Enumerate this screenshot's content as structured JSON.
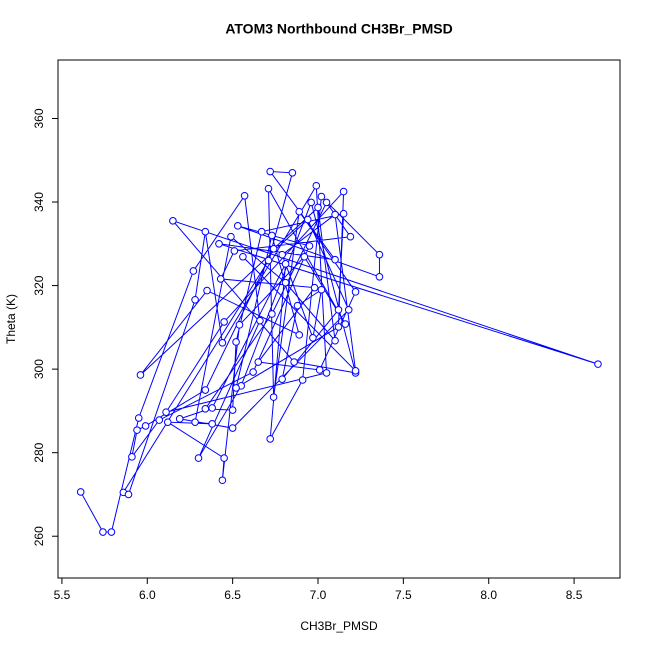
{
  "chart_data": {
    "type": "line",
    "title": "ATOM3 Northbound CH3Br_PMSD",
    "x_label": "CH3Br_PMSD",
    "y_label": "Theta (K)",
    "x": [
      5.61,
      5.74,
      5.79,
      5.95,
      6.27,
      6.57,
      6.66,
      6.3,
      6.55,
      6.96,
      7.22,
      6.86,
      6.15,
      8.64,
      6.42,
      7.1,
      6.72,
      6.85,
      6.71,
      5.86,
      5.89,
      6.28,
      6.34,
      6.44,
      6.99,
      7.05,
      6.11,
      6.45,
      7.15,
      7.12,
      6.52,
      6.73,
      6.89,
      6.35,
      5.96,
      6.94,
      7.18,
      6.5,
      6.19,
      6.38,
      6.81,
      6.72,
      6.91,
      7.02,
      7.36,
      7.36,
      6.53,
      6.95,
      6.62,
      6.07,
      5.91,
      5.94,
      5.99,
      6.34,
      6.74,
      7.0,
      7.1,
      6.81,
      6.49,
      6.28,
      6.38,
      6.12,
      6.45,
      6.44,
      6.54,
      6.92,
      7.16,
      6.71,
      6.74,
      6.89,
      7.22,
      7.01,
      6.65,
      6.98,
      6.43,
      6.51,
      7.19,
      7.05,
      6.73,
      6.34,
      6.5,
      6.52,
      6.67,
      7.15,
      7.12,
      6.79,
      6.88,
      7.02,
      6.97,
      6.79,
      7.1,
      7.22,
      6.56
    ],
    "series": [
      {
        "name": "Theta (K)",
        "color": "#0000ff",
        "values": [
          270.6,
          261,
          261,
          288.3,
          323.5,
          341.5,
          311.6,
          278.7,
          296,
          339.9,
          299.1,
          301.7,
          335.5,
          301.2,
          330,
          326.2,
          347.3,
          347,
          326,
          270.5,
          270,
          316.6,
          332.9,
          306.3,
          343.9,
          299.1,
          289.7,
          311.3,
          342.5,
          310.1,
          295.5,
          332,
          308.2,
          318.8,
          298.6,
          335.8,
          314.2,
          285.9,
          288.1,
          290.7,
          325.2,
          283.3,
          297.4,
          341.3,
          327.4,
          322.1,
          334.3,
          329.5,
          299.3,
          287.8,
          279,
          285.4,
          286.4,
          295,
          328.8,
          338.7,
          306.8,
          320.7,
          331.7,
          287.3,
          286.9,
          287.3,
          278.7,
          273.4,
          310.6,
          326.9,
          310.8,
          343.2,
          293.3,
          337.7,
          318.5,
          299.8,
          301.7,
          319.5,
          321.6,
          328.3,
          331.7,
          339.9,
          313.2,
          290.5,
          290.2,
          306.5,
          332.9,
          337.2,
          314.2,
          297.6,
          315.2,
          319,
          307.5,
          327.4,
          337,
          299.6,
          326.9
        ]
      }
    ],
    "xlim": [
      5.477,
      8.769
    ],
    "ylim": [
      250,
      374
    ],
    "xticks": [
      5.5,
      {
        "value": 6,
        "label": "6.0"
      },
      6.5,
      {
        "value": 7,
        "label": "7.0"
      },
      7.5,
      {
        "value": 8,
        "label": "8.0"
      },
      8.5
    ],
    "yticks": [
      260,
      280,
      300,
      320,
      340,
      360
    ],
    "grid": false
  }
}
